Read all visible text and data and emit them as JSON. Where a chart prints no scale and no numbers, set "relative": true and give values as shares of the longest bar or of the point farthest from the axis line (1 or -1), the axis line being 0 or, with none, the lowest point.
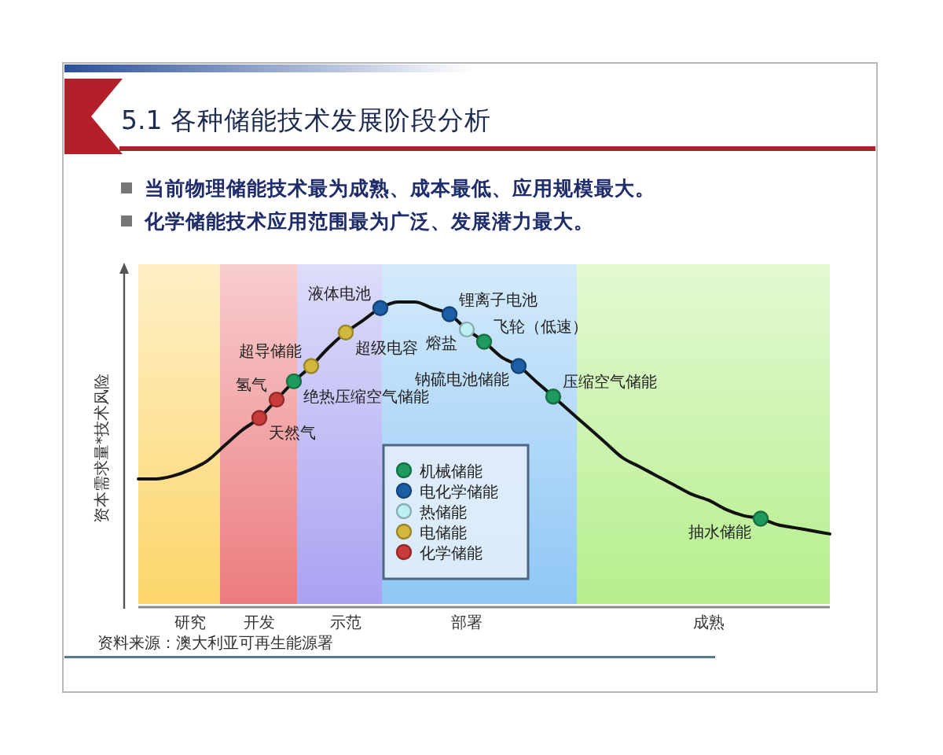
{
  "chart_data": {
    "type": "line",
    "title": "5.1 各种储能技术发展阶段分析",
    "ylabel": "资本需求量*技术风险",
    "annotations": [
      "当前物理储能技术最为成熟、成本最低、应用规模最大。",
      "化学储能技术应用范围最为广泛、发展潜力最大。",
      "资料来源：澳大利亚可再生能源署",
      "天然气",
      "氢气",
      "绝热压缩空气储能",
      "超导储能",
      "超级电容",
      "液体电池",
      "锂离子电池",
      "熔盐",
      "飞轮（低速）",
      "钠硫电池储能",
      "压缩空气储能",
      "抽水储能"
    ],
    "relative": true,
    "tick_labels": "x",
    "legend": "bottom",
    "categories": [
      null,
      null,
      null,
      "研究",
      null,
      null,
      null,
      "开发",
      null,
      null,
      null,
      null,
      "示范",
      null,
      null,
      null,
      null,
      null,
      null,
      "部署",
      null,
      null,
      null,
      null,
      null,
      null,
      null,
      null,
      null,
      null,
      null,
      null,
      null,
      "成熟",
      null,
      null,
      null,
      null,
      null,
      null,
      null
    ],
    "series": [
      {
        "color": "#111111",
        "values": [
          0.42,
          0.42,
          0.43,
          0.45,
          0.48,
          0.53,
          0.58,
          0.62,
          0.68,
          0.74,
          0.79,
          0.85,
          0.9,
          0.94,
          0.98,
          1.0,
          1.0,
          0.98,
          0.96,
          0.91,
          0.87,
          0.82,
          0.79,
          0.74,
          0.69,
          0.64,
          0.59,
          0.54,
          0.49,
          0.46,
          0.43,
          0.4,
          0.37,
          0.35,
          0.32,
          0.3,
          0.29,
          0.27,
          0.26,
          0.25,
          0.24
        ]
      },
      {
        "type": "scatter",
        "name": "机械储能",
        "color": "#1e9a5e",
        "values": [
          null,
          null,
          null,
          null,
          null,
          null,
          null,
          null,
          null,
          0.74,
          null,
          null,
          null,
          null,
          null,
          null,
          null,
          null,
          null,
          null,
          0.87,
          null,
          null,
          null,
          0.69,
          null,
          null,
          null,
          null,
          null,
          null,
          null,
          null,
          null,
          null,
          null,
          0.29,
          null,
          null,
          null,
          null
        ]
      },
      {
        "type": "scatter",
        "name": "电化学储能",
        "color": "#1d5fa6",
        "values": [
          null,
          null,
          null,
          null,
          null,
          null,
          null,
          null,
          null,
          null,
          null,
          null,
          null,
          null,
          0.98,
          null,
          null,
          null,
          0.96,
          null,
          null,
          null,
          0.79,
          null,
          null,
          null,
          null,
          null,
          null,
          null,
          null,
          null,
          null,
          null,
          null,
          null,
          null,
          null,
          null,
          null,
          null
        ]
      },
      {
        "type": "scatter",
        "name": "热储能",
        "color": "#bdf0f2",
        "values": [
          null,
          null,
          null,
          null,
          null,
          null,
          null,
          null,
          null,
          null,
          null,
          null,
          null,
          null,
          null,
          null,
          null,
          null,
          null,
          0.91,
          null,
          null,
          null,
          null,
          null,
          null,
          null,
          null,
          null,
          null,
          null,
          null,
          null,
          null,
          null,
          null,
          null,
          null,
          null,
          null,
          null
        ]
      },
      {
        "type": "scatter",
        "name": "电储能",
        "color": "#d2b93e",
        "values": [
          null,
          null,
          null,
          null,
          null,
          null,
          null,
          null,
          null,
          null,
          0.79,
          null,
          0.9,
          null,
          null,
          null,
          null,
          null,
          null,
          null,
          null,
          null,
          null,
          null,
          null,
          null,
          null,
          null,
          null,
          null,
          null,
          null,
          null,
          null,
          null,
          null,
          null,
          null,
          null,
          null,
          null
        ]
      },
      {
        "type": "scatter",
        "name": "化学储能",
        "color": "#c93a3a",
        "values": [
          null,
          null,
          null,
          null,
          null,
          null,
          null,
          0.62,
          0.68,
          null,
          null,
          null,
          null,
          null,
          null,
          null,
          null,
          null,
          null,
          null,
          null,
          null,
          null,
          null,
          null,
          null,
          null,
          null,
          null,
          null,
          null,
          null,
          null,
          null,
          null,
          null,
          null,
          null,
          null,
          null,
          null
        ]
      }
    ]
  }
}
